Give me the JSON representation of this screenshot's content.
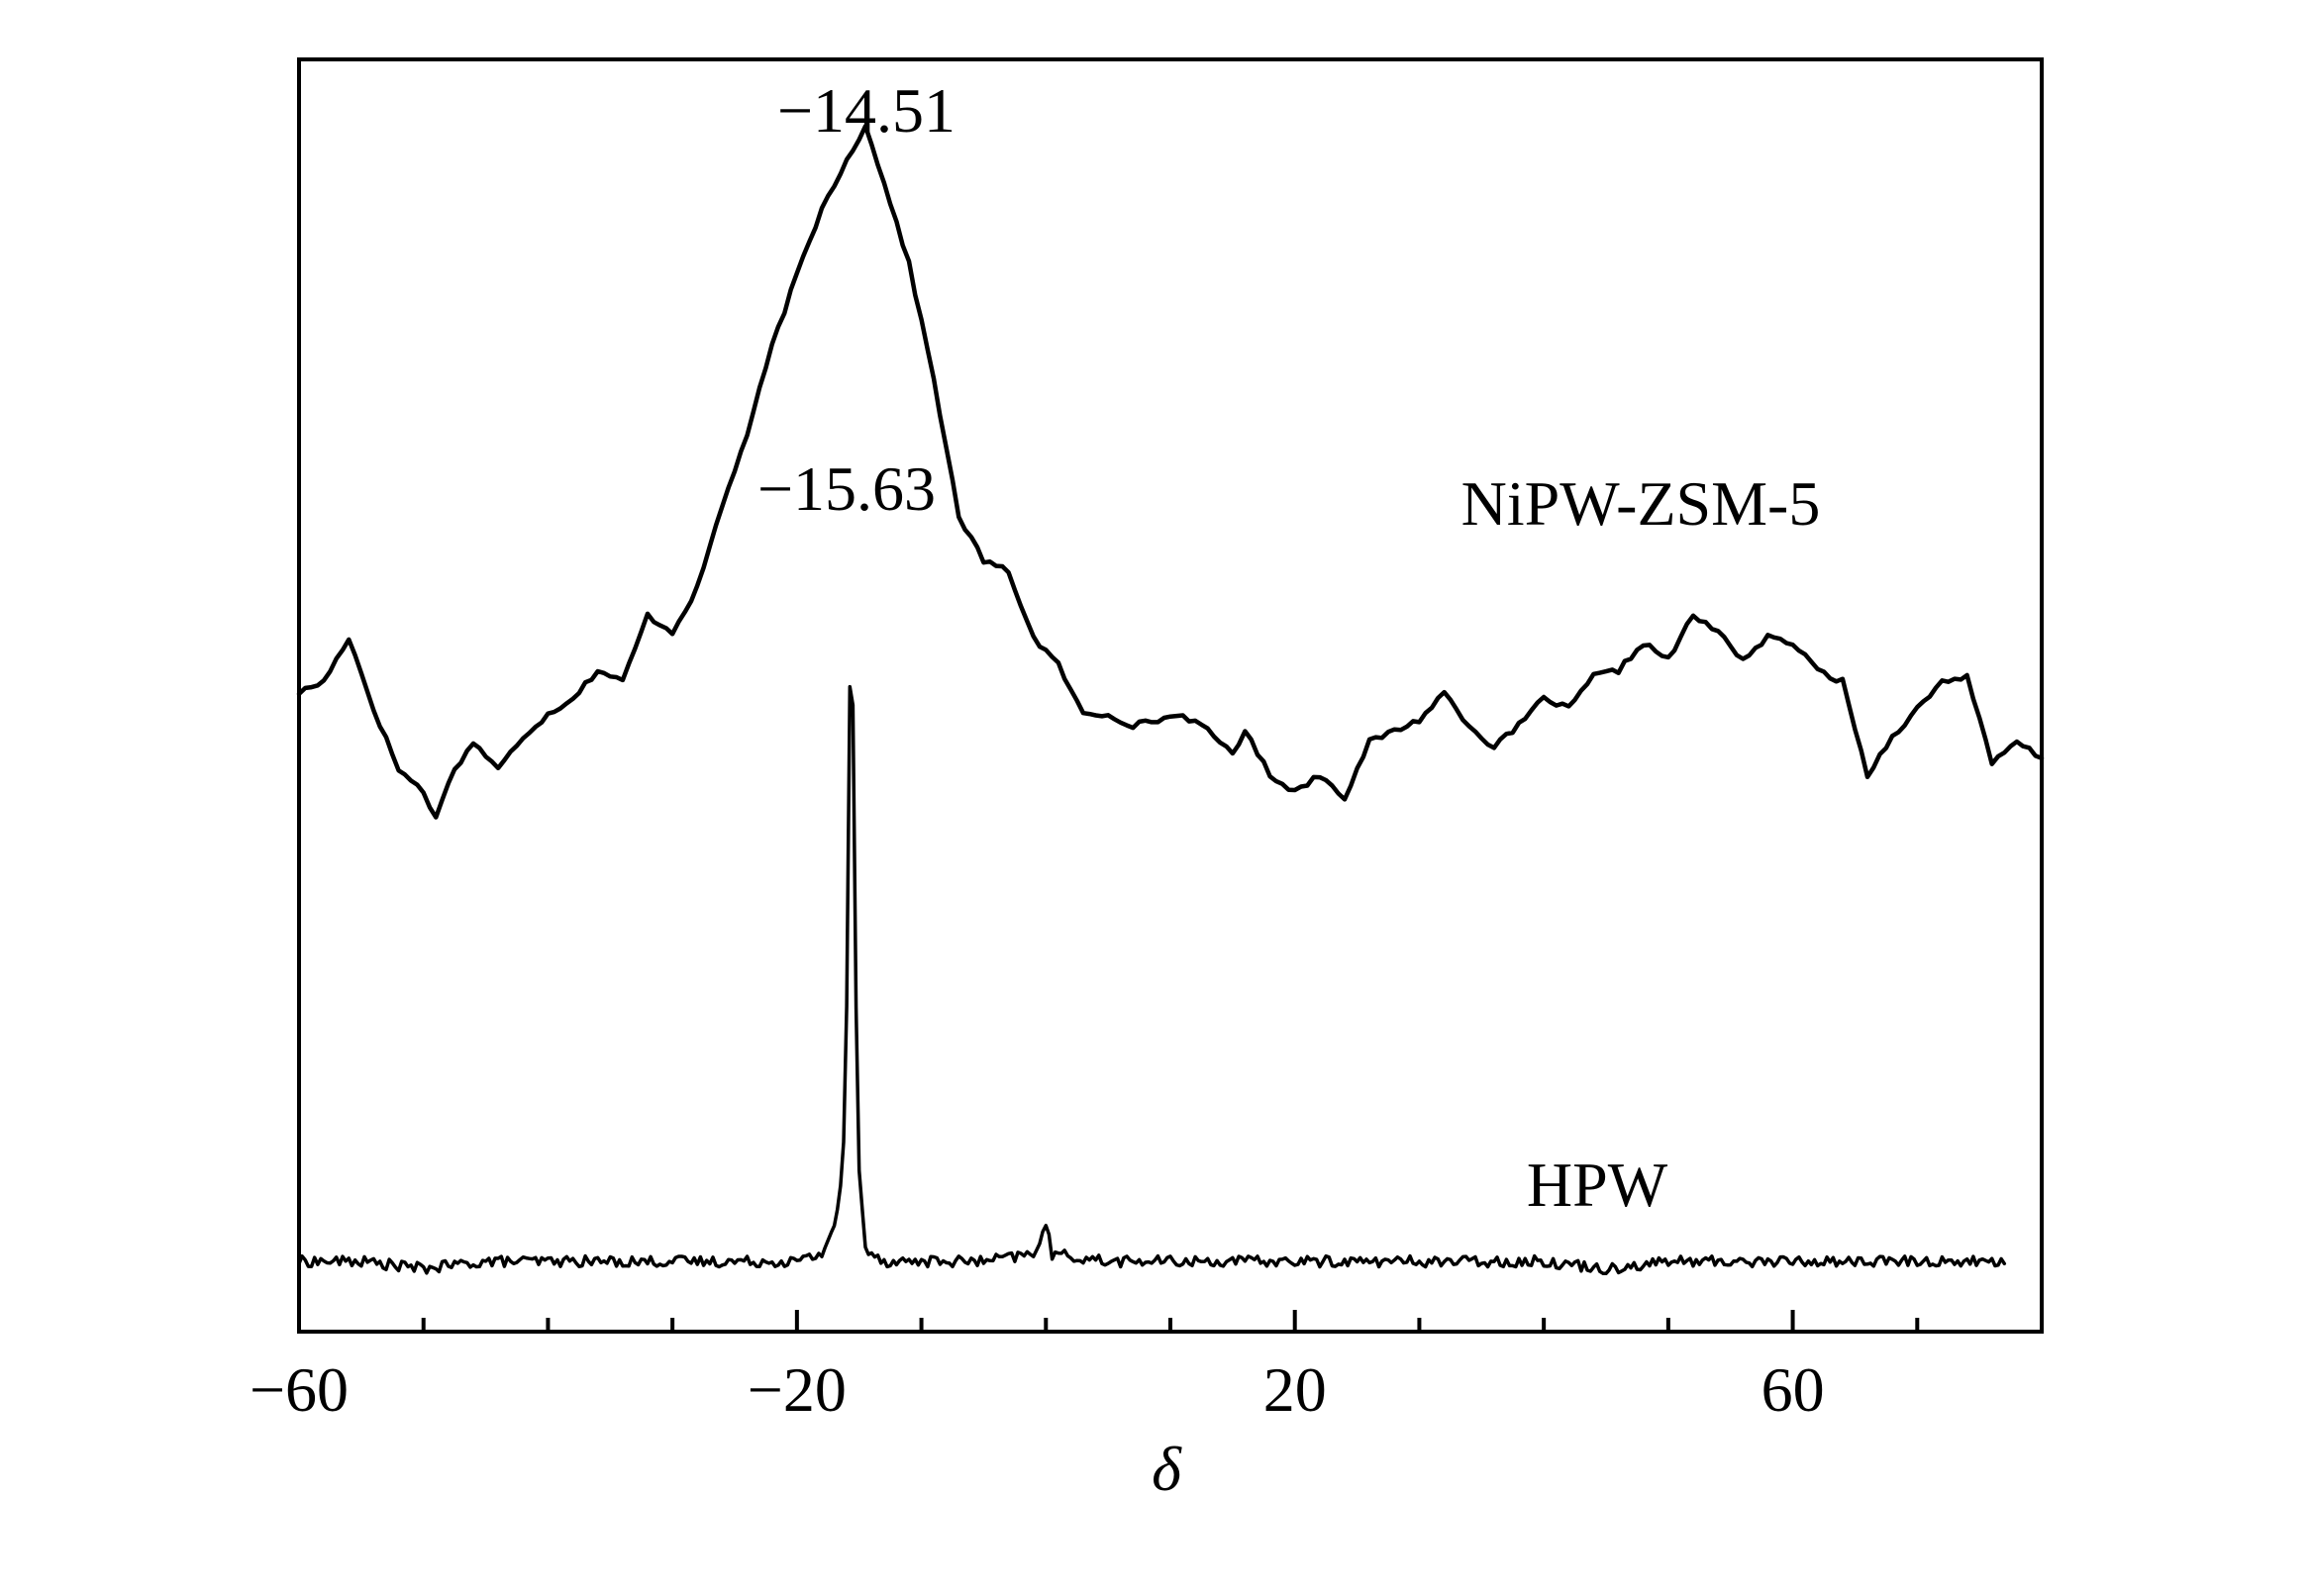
{
  "chart_data": {
    "type": "line",
    "title": "",
    "xlabel": "δ",
    "ylabel": "",
    "xlim": [
      -60,
      80
    ],
    "grid": false,
    "legend": "none",
    "x_ticks": [
      {
        "value": -60,
        "label": "−60"
      },
      {
        "value": -20,
        "label": "−20"
      },
      {
        "value": 20,
        "label": "20"
      },
      {
        "value": 60,
        "label": "60"
      }
    ],
    "x_minor_ticks": [
      -50,
      -40,
      -30,
      -10,
      0,
      10,
      30,
      40,
      50,
      70
    ],
    "annotations": [
      {
        "text": "−14.51",
        "x": -14.51,
        "series": "NiPW-ZSM-5"
      },
      {
        "text": "−15.63",
        "x": -15.63,
        "series": "HPW"
      }
    ],
    "series": [
      {
        "name": "NiPW-ZSM-5",
        "relative_intensity": true,
        "points": [
          [
            -60,
            0.01
          ],
          [
            -58,
            0.03
          ],
          [
            -56,
            0.11
          ],
          [
            -54,
            -0.02
          ],
          [
            -52,
            -0.13
          ],
          [
            -50,
            -0.17
          ],
          [
            -49,
            -0.22
          ],
          [
            -48,
            -0.15
          ],
          [
            -46,
            -0.08
          ],
          [
            -44,
            -0.13
          ],
          [
            -42,
            -0.07
          ],
          [
            -40,
            -0.03
          ],
          [
            -38,
            0.0
          ],
          [
            -36,
            0.05
          ],
          [
            -34,
            0.03
          ],
          [
            -32,
            0.15
          ],
          [
            -30,
            0.12
          ],
          [
            -28,
            0.2
          ],
          [
            -26,
            0.35
          ],
          [
            -24,
            0.48
          ],
          [
            -22,
            0.64
          ],
          [
            -20,
            0.77
          ],
          [
            -18,
            0.89
          ],
          [
            -16,
            0.98
          ],
          [
            -14.51,
            1.04
          ],
          [
            -13,
            0.94
          ],
          [
            -11,
            0.79
          ],
          [
            -9,
            0.58
          ],
          [
            -7,
            0.33
          ],
          [
            -5,
            0.25
          ],
          [
            -3,
            0.23
          ],
          [
            -1,
            0.11
          ],
          [
            1,
            0.06
          ],
          [
            3,
            -0.03
          ],
          [
            5,
            -0.03
          ],
          [
            7,
            -0.05
          ],
          [
            9,
            -0.04
          ],
          [
            11,
            -0.03
          ],
          [
            13,
            -0.06
          ],
          [
            15,
            -0.1
          ],
          [
            16,
            -0.06
          ],
          [
            18,
            -0.14
          ],
          [
            20,
            -0.17
          ],
          [
            22,
            -0.14
          ],
          [
            24,
            -0.18
          ],
          [
            26,
            -0.08
          ],
          [
            28,
            -0.06
          ],
          [
            30,
            -0.04
          ],
          [
            32,
            0.01
          ],
          [
            34,
            -0.05
          ],
          [
            36,
            -0.09
          ],
          [
            38,
            -0.05
          ],
          [
            40,
            0.0
          ],
          [
            42,
            -0.02
          ],
          [
            44,
            0.04
          ],
          [
            46,
            0.05
          ],
          [
            48,
            0.1
          ],
          [
            50,
            0.07
          ],
          [
            52,
            0.15
          ],
          [
            54,
            0.12
          ],
          [
            56,
            0.07
          ],
          [
            58,
            0.11
          ],
          [
            60,
            0.1
          ],
          [
            62,
            0.05
          ],
          [
            64,
            0.03
          ],
          [
            66,
            -0.14
          ],
          [
            68,
            -0.07
          ],
          [
            70,
            -0.02
          ],
          [
            72,
            0.03
          ],
          [
            74,
            0.04
          ],
          [
            76,
            -0.12
          ],
          [
            78,
            -0.08
          ],
          [
            80,
            -0.11
          ]
        ]
      },
      {
        "name": "HPW",
        "relative_intensity": true,
        "points": [
          [
            -60,
            0.0
          ],
          [
            -55,
            0.0
          ],
          [
            -50,
            -0.01
          ],
          [
            -45,
            0.0
          ],
          [
            -40,
            0.0
          ],
          [
            -35,
            0.0
          ],
          [
            -30,
            0.0
          ],
          [
            -25,
            0.0
          ],
          [
            -20,
            0.0
          ],
          [
            -18,
            0.01
          ],
          [
            -17,
            0.05
          ],
          [
            -16.3,
            0.12
          ],
          [
            -16,
            0.35
          ],
          [
            -15.63,
            1.0
          ],
          [
            -15.3,
            0.4
          ],
          [
            -15,
            0.12
          ],
          [
            -14.5,
            0.02
          ],
          [
            -13,
            0.0
          ],
          [
            -10,
            0.0
          ],
          [
            -5,
            0.0
          ],
          [
            -1,
            0.01
          ],
          [
            0,
            0.05
          ],
          [
            0.5,
            0.01
          ],
          [
            5,
            0.0
          ],
          [
            10,
            0.0
          ],
          [
            15,
            0.0
          ],
          [
            20,
            0.0
          ],
          [
            25,
            0.0
          ],
          [
            30,
            0.0
          ],
          [
            35,
            0.0
          ],
          [
            40,
            0.0
          ],
          [
            45,
            -0.01
          ],
          [
            50,
            0.0
          ],
          [
            55,
            0.0
          ],
          [
            60,
            0.0
          ],
          [
            65,
            0.0
          ],
          [
            70,
            0.0
          ],
          [
            75,
            0.0
          ],
          [
            77,
            0.0
          ]
        ]
      }
    ]
  }
}
